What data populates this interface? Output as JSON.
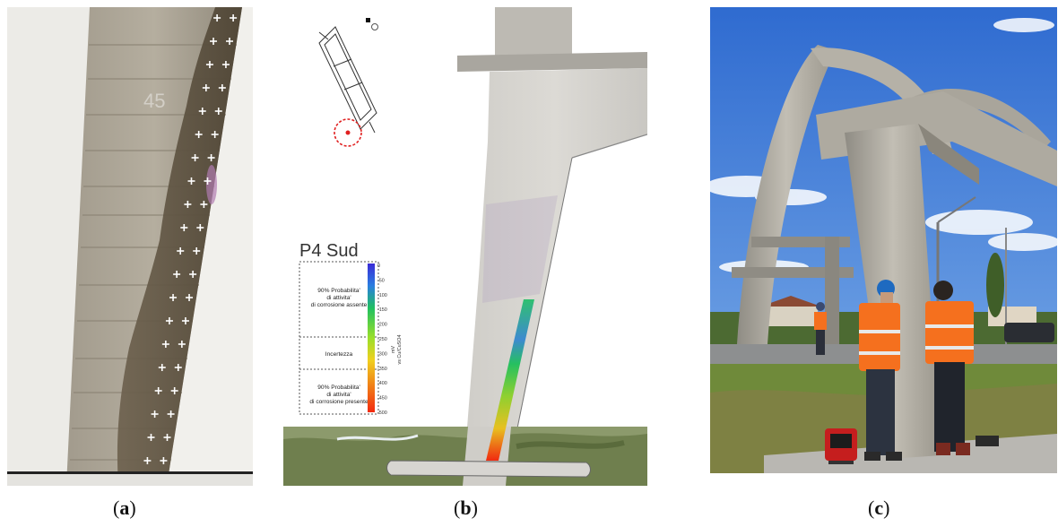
{
  "panels": {
    "a": {
      "caption_open": "(",
      "caption_letter": "a",
      "caption_close": ")",
      "wall_marking": "45"
    },
    "b": {
      "caption_open": "(",
      "caption_letter": "b",
      "caption_close": ")",
      "title": "P4 Sud",
      "legend_zones": [
        {
          "line1": "90% Probabilita'",
          "line2": "di attivita'",
          "line3": "di corrosione assente"
        },
        {
          "line1": "Incertezza",
          "line2": "",
          "line3": ""
        },
        {
          "line1": "90% Probabilita'",
          "line2": "di attivita'",
          "line3": "di corrosione presente"
        }
      ],
      "scale_ticks": [
        "0",
        "-50",
        "-100",
        "-150",
        "-200",
        "-250",
        "-300",
        "-350",
        "-400",
        "-450",
        "-500"
      ],
      "scale_unit": "mV",
      "scale_reference": "vs Cu/CuSO4",
      "colors": {
        "scale_top": "#3a2bd6",
        "scale_mid": "#9adf2a",
        "scale_bottom": "#f22a10",
        "locator_circle": "#e02020"
      }
    },
    "c": {
      "caption_open": "(",
      "caption_letter": "c",
      "caption_close": ")",
      "colors": {
        "sky": "#3d7ad6",
        "vest": "#f5701e",
        "grass": "#6f8a3a"
      }
    }
  }
}
